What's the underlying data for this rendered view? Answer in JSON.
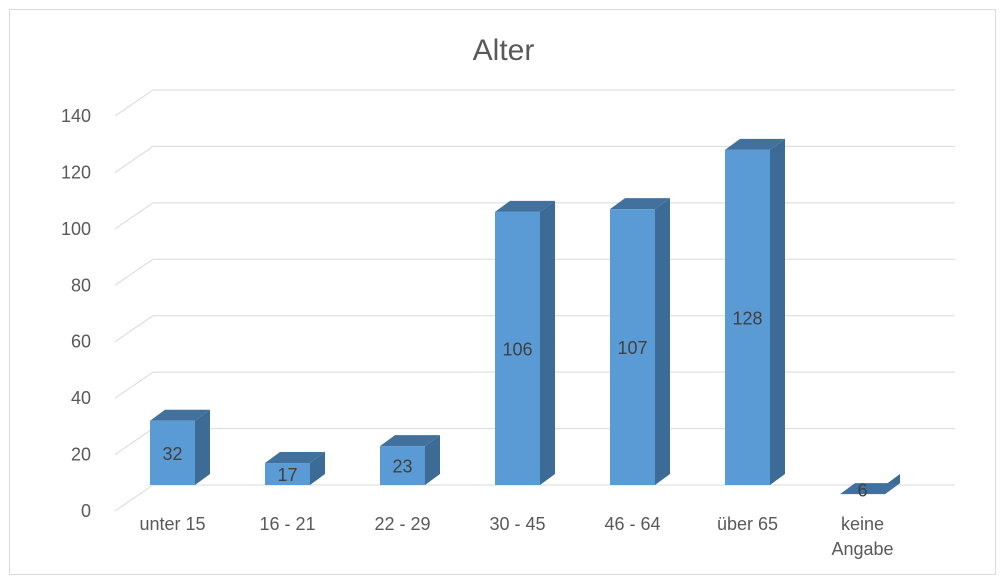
{
  "chart_data": {
    "type": "bar",
    "title": "Alter",
    "xlabel": "",
    "ylabel": "",
    "categories": [
      [
        "unter 15"
      ],
      [
        "16 - 21"
      ],
      [
        "22 - 29"
      ],
      [
        "30 - 45"
      ],
      [
        "46 - 64"
      ],
      [
        "über 65"
      ],
      [
        "keine",
        "Angabe"
      ]
    ],
    "values": [
      32,
      17,
      23,
      106,
      107,
      128,
      6
    ],
    "ylim": [
      0,
      140
    ],
    "yticks": [
      0,
      20,
      40,
      60,
      80,
      100,
      120,
      140
    ],
    "grid": true,
    "style": "3d-column",
    "colors": {
      "front": "#5b9bd5",
      "side": "#3c6b96",
      "top": "#41719c"
    }
  }
}
